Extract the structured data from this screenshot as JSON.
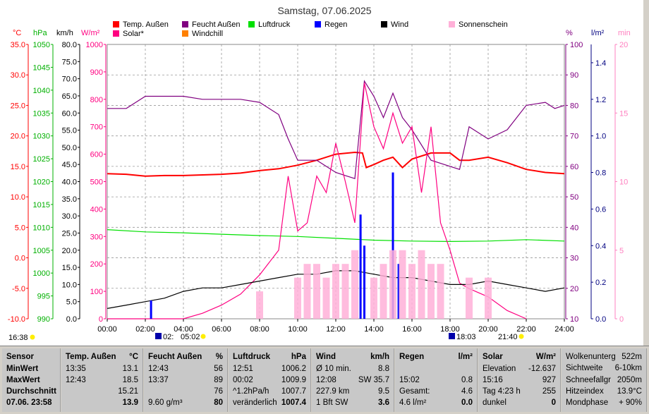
{
  "chart_data": {
    "type": "line",
    "title": "Samstag, 07.06.2025",
    "x_ticks": [
      "00:00",
      "02:00",
      "04:00",
      "06:00",
      "08:00",
      "10:00",
      "12:00",
      "14:00",
      "16:00",
      "18:00",
      "20:00",
      "22:00",
      "24:00"
    ],
    "x_range_hours": [
      0,
      24
    ],
    "legend": [
      {
        "name": "Temp. Außen",
        "color": "#ff0000"
      },
      {
        "name": "Feucht Außen",
        "color": "#800080"
      },
      {
        "name": "Luftdruck",
        "color": "#00e000"
      },
      {
        "name": "Regen",
        "color": "#0000ff"
      },
      {
        "name": "Wind",
        "color": "#000000"
      },
      {
        "name": "Sonnenschein",
        "color": "#ffb0d8"
      },
      {
        "name": "Solar*",
        "color": "#ff0080"
      },
      {
        "name": "Windchill",
        "color": "#ff8000"
      }
    ],
    "axes": {
      "temp_c": {
        "label": "°C",
        "color": "#ff0000",
        "ticks": [
          "35.0",
          "30.0",
          "25.0",
          "20.0",
          "15.0",
          "10.0",
          "5.0",
          "0.0",
          "-5.0",
          "-10.0"
        ],
        "range": [
          -10,
          35
        ]
      },
      "pressure_hpa": {
        "label": "hPa",
        "color": "#00b000",
        "ticks": [
          "1050",
          "1045",
          "1040",
          "1035",
          "1030",
          "1025",
          "1020",
          "1015",
          "1010",
          "1005",
          "1000",
          "995",
          "990"
        ],
        "range": [
          990,
          1050
        ]
      },
      "wind_kmh": {
        "label": "km/h",
        "color": "#000000",
        "ticks": [
          "80.0",
          "75.0",
          "70.0",
          "65.0",
          "60.0",
          "55.0",
          "50.0",
          "45.0",
          "40.0",
          "35.0",
          "30.0",
          "25.0",
          "20.0",
          "15.0",
          "10.0",
          "5.0",
          "0.0"
        ],
        "range": [
          0,
          80
        ]
      },
      "solar_wm2": {
        "label": "W/m²",
        "color": "#ff0080",
        "ticks": [
          "1000",
          "900",
          "800",
          "700",
          "600",
          "500",
          "400",
          "300",
          "200",
          "100",
          "0"
        ],
        "range": [
          0,
          1000
        ]
      },
      "humidity_pct": {
        "label": "%",
        "color": "#800080",
        "ticks": [
          "100",
          "90",
          "80",
          "70",
          "60",
          "50",
          "40",
          "30",
          "20",
          "10"
        ],
        "range": [
          10,
          100
        ]
      },
      "rain_lm2": {
        "label": "l/m²",
        "color": "#000080",
        "ticks": [
          "1.4",
          "1.2",
          "1.0",
          "0.8",
          "0.6",
          "0.4",
          "0.2",
          "0.0"
        ],
        "range": [
          0,
          1.5
        ]
      },
      "sun_min": {
        "label": "min",
        "color": "#ff80c0",
        "ticks": [
          "20",
          "15",
          "10",
          "5",
          "0"
        ],
        "range": [
          0,
          20
        ]
      }
    },
    "series": [
      {
        "name": "Temp. Außen",
        "axis": "temp_c",
        "x": [
          0,
          1,
          2,
          3,
          4,
          5,
          6,
          7,
          8,
          9,
          10,
          11,
          12,
          13,
          13.4,
          13.6,
          14,
          14.5,
          15,
          15.5,
          16,
          17,
          18,
          18.5,
          19,
          20,
          21,
          22,
          23,
          24
        ],
        "y": [
          13.8,
          13.7,
          13.4,
          13.5,
          13.5,
          13.6,
          13.7,
          13.9,
          14.3,
          14.6,
          15.2,
          16.0,
          17.0,
          17.3,
          17.2,
          14.8,
          15.3,
          16.0,
          16.5,
          14.8,
          16.2,
          17.2,
          17.2,
          16.0,
          16.0,
          16.5,
          15.6,
          14.5,
          14.0,
          13.8
        ]
      },
      {
        "name": "Feucht Außen",
        "axis": "humidity_pct",
        "x": [
          0,
          1,
          1.5,
          2,
          3,
          4,
          5,
          6,
          7,
          8,
          9,
          9.5,
          10,
          11,
          12,
          12.5,
          13,
          13.5,
          14,
          14.5,
          15,
          15.5,
          16,
          17,
          18,
          18.5,
          19,
          20,
          21,
          22,
          23,
          23.5,
          24
        ],
        "y": [
          79,
          79,
          81,
          83,
          83,
          83,
          82,
          82,
          82,
          81,
          77,
          69,
          62,
          62,
          58,
          57,
          56,
          88,
          83,
          76,
          84,
          76,
          72,
          62,
          60,
          59,
          73,
          69,
          72,
          80,
          81,
          79,
          80
        ]
      },
      {
        "name": "Luftdruck",
        "axis": "pressure_hpa",
        "x": [
          0,
          2,
          4,
          6,
          8,
          10,
          12,
          14,
          16,
          18,
          20,
          22,
          24
        ],
        "y": [
          1009.5,
          1009.0,
          1008.8,
          1008.5,
          1008.2,
          1008.0,
          1007.6,
          1007.2,
          1007.0,
          1006.9,
          1007.0,
          1007.3,
          1007.0
        ]
      },
      {
        "name": "Solar*",
        "axis": "solar_wm2",
        "x": [
          0,
          4,
          5,
          6,
          7,
          8,
          9,
          9.5,
          10,
          10.5,
          11,
          11.5,
          12,
          12.5,
          13,
          13.5,
          14,
          14.5,
          15,
          15.5,
          16,
          16.5,
          17,
          17.5,
          18,
          18.5,
          19,
          20,
          21,
          22
        ],
        "y": [
          0,
          0,
          20,
          50,
          90,
          160,
          250,
          520,
          320,
          350,
          520,
          460,
          640,
          500,
          350,
          860,
          700,
          620,
          750,
          640,
          700,
          460,
          700,
          350,
          250,
          130,
          110,
          80,
          30,
          0
        ]
      },
      {
        "name": "Wind",
        "axis": "wind_kmh",
        "x": [
          0,
          1,
          2,
          3,
          4,
          5,
          6,
          7,
          8,
          9,
          10,
          11,
          12,
          13,
          14,
          15,
          16,
          17,
          18,
          19,
          20,
          21,
          22,
          23,
          24
        ],
        "y": [
          3,
          4,
          5,
          6,
          8,
          9,
          9,
          10,
          11,
          12,
          13,
          13,
          14,
          14,
          13,
          12,
          12,
          11,
          10,
          10,
          11,
          10,
          9,
          8,
          9
        ]
      },
      {
        "name": "Regen",
        "axis": "rain_lm2",
        "x": [
          2.3,
          13.3,
          13.5,
          15.0,
          15.3
        ],
        "y": [
          0.1,
          0.57,
          0.4,
          0.8,
          0.3
        ]
      },
      {
        "name": "Sonnenschein",
        "axis": "sun_min",
        "x": [
          8,
          10,
          10.5,
          11,
          11.5,
          12,
          12.5,
          13,
          14,
          14.5,
          15,
          15.5,
          16,
          16.5,
          17,
          17.5,
          19,
          20
        ],
        "y": [
          2,
          3,
          4,
          4,
          3,
          4,
          4,
          5,
          3,
          4,
          5,
          5,
          4,
          5,
          4,
          4,
          3,
          3
        ]
      }
    ],
    "markers": {
      "sunrise_label": "05:02",
      "sunset_label": "21:40",
      "start_label": "02:",
      "moon_label": "18:03",
      "left_label": "16:38"
    }
  },
  "stats": {
    "sensor": {
      "title": "Sensor",
      "rows": [
        "MinWert",
        "MaxWert",
        "Durchschnitt",
        "07.06. 23:58"
      ]
    },
    "temp": {
      "title": "Temp. Außen",
      "unit": "°C",
      "rows": [
        [
          "13:35",
          "13.1"
        ],
        [
          "12:43",
          "18.5"
        ],
        [
          "",
          "15.21"
        ],
        [
          "",
          "13.9"
        ]
      ]
    },
    "feucht": {
      "title": "Feucht Außen",
      "unit": "%",
      "rows": [
        [
          "12:43",
          "56"
        ],
        [
          "13:37",
          "89"
        ],
        [
          "",
          "76"
        ],
        [
          "9.60 g/m³",
          "80"
        ]
      ]
    },
    "druck": {
      "title": "Luftdruck",
      "unit": "hPa",
      "rows": [
        [
          "12:51",
          "1006.2"
        ],
        [
          "00:02",
          "1009.9"
        ],
        [
          "^1.2hPa/h",
          "1007.7"
        ],
        [
          "veränderlich",
          "1007.4"
        ]
      ]
    },
    "wind": {
      "title": "Wind",
      "unit": "km/h",
      "rows": [
        [
          "Ø 10 min.",
          "8.8"
        ],
        [
          "12:08",
          "SW 35.7"
        ],
        [
          "227.9 km",
          "9.5"
        ],
        [
          "1 Bft SW",
          "3.6"
        ]
      ]
    },
    "regen": {
      "title": "Regen",
      "unit": "l/m²",
      "rows": [
        [
          "",
          ""
        ],
        [
          "15:02",
          "0.8"
        ],
        [
          "Gesamt:",
          "4.6"
        ],
        [
          "4.6 l/m²",
          "0.0"
        ]
      ]
    },
    "solar": {
      "title": "Solar",
      "unit": "W/m²",
      "rows": [
        [
          "Elevation",
          "-12.637"
        ],
        [
          "15:16",
          "927"
        ],
        [
          "Tag 4:23 h",
          "255"
        ],
        [
          "dunkel",
          "0"
        ]
      ]
    },
    "extra": {
      "rows": [
        [
          "Wolkenunterg",
          "522m"
        ],
        [
          "Sichtweite",
          "6-10km"
        ],
        [
          "Schneefallgr",
          "2050m"
        ],
        [
          "Hitzeindex",
          "13.9°C"
        ],
        [
          "Mondphase",
          "+ 90%"
        ]
      ]
    }
  }
}
